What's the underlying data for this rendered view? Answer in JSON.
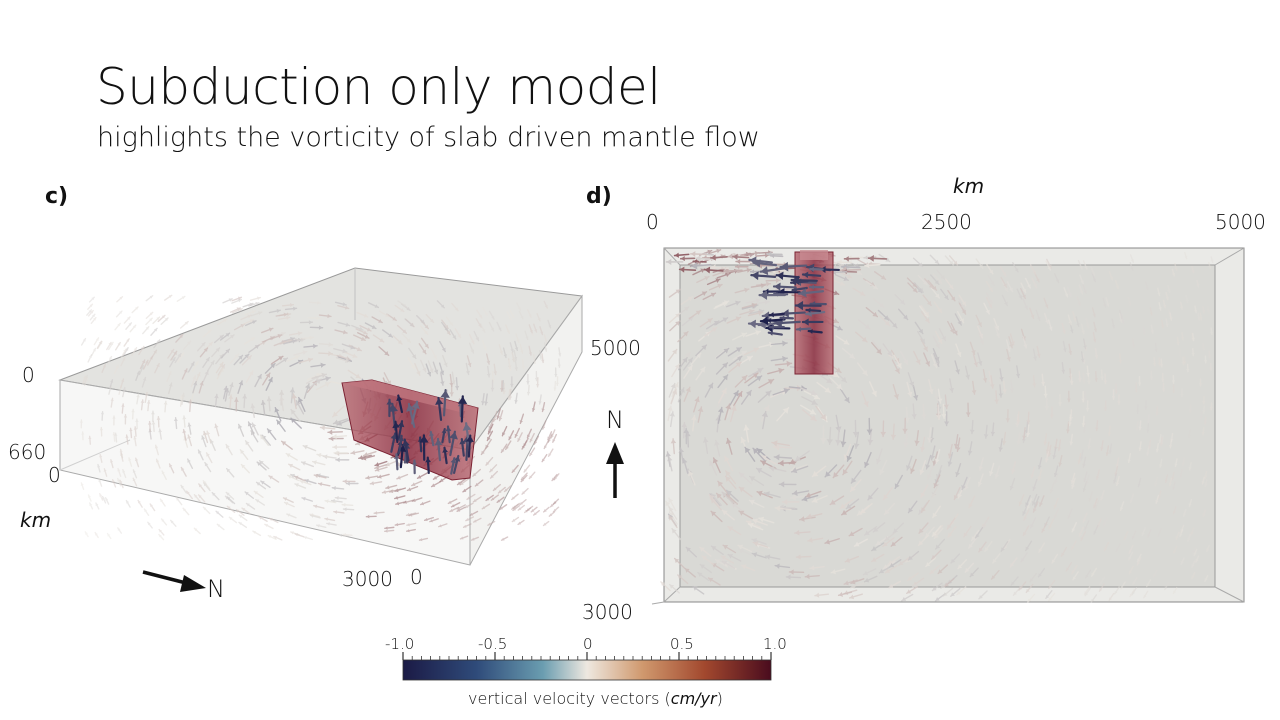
{
  "slide": {
    "title": "Subduction only model",
    "subtitle": "highlights the vorticity of slab driven mantle flow"
  },
  "panel_c": {
    "label": "c)",
    "depth_top": "0",
    "depth_bottom": "660",
    "axis_origin": "0",
    "unit": "km",
    "x_end": "3000",
    "y_start": "0",
    "north": "N"
  },
  "panel_d": {
    "label": "d)",
    "unit": "km",
    "x_ticks": [
      "0",
      "2500",
      "5000"
    ],
    "y_top": "5000",
    "y_bottom": "3000",
    "north": "N"
  },
  "colorbar": {
    "ticks": [
      "-1.0",
      "-0.5",
      "0",
      "0.5",
      "1.0"
    ],
    "title_main": "vertical velocity vectors (",
    "title_unit": "cm/yr",
    "title_close": ")",
    "range": [
      -1.0,
      1.0
    ]
  },
  "colors": {
    "negative": "#1d1f4a",
    "neutral": "#e8e4de",
    "positive": "#5a0e1c",
    "slab": "#9e3a4a",
    "box_fill": "#d8d8d4"
  }
}
